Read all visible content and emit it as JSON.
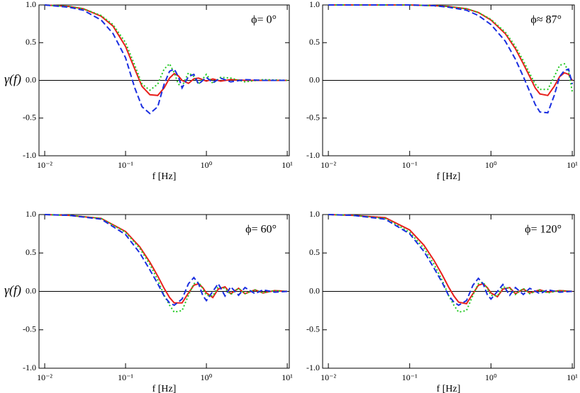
{
  "chart_data": [
    {
      "type": "line",
      "annotation": "ϕ= 0°",
      "ylabel": "γ(f)",
      "xlabel": "f [Hz]",
      "xscale": "log",
      "xlim": [
        0.0085,
        10.6
      ],
      "ylim": [
        -1,
        1
      ],
      "xticks": [
        {
          "value": 0.01,
          "label": "10⁻²"
        },
        {
          "value": 0.1,
          "label": "10⁻¹"
        },
        {
          "value": 1,
          "label": "10⁰"
        },
        {
          "value": 10,
          "label": "10¹"
        }
      ],
      "yticks": [
        {
          "value": -1,
          "label": "-1.0"
        },
        {
          "value": -0.5,
          "label": "-0.5"
        },
        {
          "value": 0,
          "label": "0.0"
        },
        {
          "value": 0.5,
          "label": "0.5"
        },
        {
          "value": 1,
          "label": "1.0"
        }
      ],
      "x": [
        0.01,
        0.02,
        0.03,
        0.05,
        0.07,
        0.1,
        0.13,
        0.16,
        0.2,
        0.25,
        0.3,
        0.35,
        0.4,
        0.45,
        0.5,
        0.6,
        0.7,
        0.8,
        1.0,
        1.2,
        1.5,
        2,
        3,
        5,
        10
      ],
      "series": [
        {
          "color": "#e8201c",
          "dash": "solid",
          "values": [
            1,
            0.98,
            0.95,
            0.85,
            0.72,
            0.45,
            0.15,
            -0.08,
            -0.19,
            -0.2,
            -0.1,
            0.03,
            0.09,
            0.06,
            0.0,
            -0.04,
            0.02,
            0.03,
            -0.01,
            0.02,
            -0.01,
            0.01,
            0,
            0,
            0
          ]
        },
        {
          "color": "#22c922",
          "dash": "dotted",
          "values": [
            1,
            0.98,
            0.95,
            0.86,
            0.74,
            0.5,
            0.2,
            -0.05,
            -0.13,
            -0.05,
            0.15,
            0.22,
            0.1,
            -0.05,
            -0.08,
            0.1,
            0.05,
            -0.05,
            0.08,
            -0.04,
            0.04,
            0.03,
            -0.02,
            0.01,
            0
          ]
        },
        {
          "color": "#1a2ee0",
          "dash": "dashed",
          "values": [
            1,
            0.97,
            0.93,
            0.8,
            0.62,
            0.3,
            -0.1,
            -0.35,
            -0.44,
            -0.35,
            -0.05,
            0.12,
            0.15,
            0.05,
            -0.1,
            0.05,
            0.08,
            -0.05,
            0.04,
            -0.03,
            0.03,
            -0.02,
            0.01,
            0,
            0
          ]
        }
      ]
    },
    {
      "type": "line",
      "annotation": "ϕ≈ 87°",
      "xlabel": "f [Hz]",
      "xscale": "log",
      "xlim": [
        0.0085,
        10.6
      ],
      "ylim": [
        -1,
        1
      ],
      "xticks": [
        {
          "value": 0.01,
          "label": "10⁻²"
        },
        {
          "value": 0.1,
          "label": "10⁻¹"
        },
        {
          "value": 1,
          "label": "10⁰"
        },
        {
          "value": 10,
          "label": "10¹"
        }
      ],
      "yticks": [
        {
          "value": -1,
          "label": "-1.0"
        },
        {
          "value": -0.5,
          "label": "-0.5"
        },
        {
          "value": 0,
          "label": "0.0"
        },
        {
          "value": 0.5,
          "label": "0.5"
        },
        {
          "value": 1,
          "label": "1.0"
        }
      ],
      "x": [
        0.01,
        0.05,
        0.1,
        0.2,
        0.3,
        0.5,
        0.7,
        1,
        1.5,
        2,
        2.5,
        3,
        3.5,
        4,
        5,
        6,
        7,
        8,
        9,
        10
      ],
      "series": [
        {
          "color": "#e8201c",
          "dash": "solid",
          "values": [
            1,
            1,
            1,
            0.99,
            0.98,
            0.95,
            0.9,
            0.8,
            0.62,
            0.42,
            0.22,
            0.05,
            -0.1,
            -0.18,
            -0.2,
            -0.08,
            0.05,
            0.1,
            0.08,
            0.0
          ]
        },
        {
          "color": "#22c922",
          "dash": "dotted",
          "values": [
            1,
            1,
            1,
            0.99,
            0.98,
            0.95,
            0.9,
            0.81,
            0.64,
            0.45,
            0.26,
            0.09,
            -0.05,
            -0.12,
            -0.12,
            0.05,
            0.2,
            0.22,
            0.12,
            -0.15
          ]
        },
        {
          "color": "#1a2ee0",
          "dash": "dashed",
          "values": [
            1,
            1,
            1,
            0.99,
            0.97,
            0.93,
            0.86,
            0.74,
            0.52,
            0.28,
            0.05,
            -0.15,
            -0.32,
            -0.42,
            -0.43,
            -0.2,
            0.05,
            0.13,
            0.15,
            -0.05
          ]
        }
      ]
    },
    {
      "type": "line",
      "annotation": "ϕ= 60°",
      "ylabel": "γ(f)",
      "xlabel": "f [Hz]",
      "xscale": "log",
      "xlim": [
        0.0085,
        10.6
      ],
      "ylim": [
        -1,
        1
      ],
      "xticks": [
        {
          "value": 0.01,
          "label": "10⁻²"
        },
        {
          "value": 0.1,
          "label": "10⁻¹"
        },
        {
          "value": 1,
          "label": "10⁰"
        },
        {
          "value": 10,
          "label": "10¹"
        }
      ],
      "yticks": [
        {
          "value": -1,
          "label": "-1.0"
        },
        {
          "value": -0.5,
          "label": "-0.5"
        },
        {
          "value": 0,
          "label": "0.0"
        },
        {
          "value": 0.5,
          "label": "0.5"
        },
        {
          "value": 1,
          "label": "1.0"
        }
      ],
      "x": [
        0.01,
        0.02,
        0.05,
        0.1,
        0.15,
        0.2,
        0.25,
        0.3,
        0.35,
        0.4,
        0.5,
        0.6,
        0.7,
        0.8,
        0.9,
        1.0,
        1.2,
        1.4,
        1.7,
        2,
        2.5,
        3,
        4,
        5,
        7,
        10
      ],
      "series": [
        {
          "color": "#e8201c",
          "dash": "solid",
          "values": [
            1,
            0.99,
            0.95,
            0.78,
            0.58,
            0.38,
            0.2,
            0.04,
            -0.08,
            -0.15,
            -0.15,
            -0.02,
            0.08,
            0.1,
            0.05,
            -0.02,
            -0.08,
            0.03,
            0.06,
            -0.03,
            0.04,
            -0.03,
            0.02,
            -0.02,
            0.01,
            0
          ]
        },
        {
          "color": "#22c922",
          "dash": "dotted",
          "values": [
            1,
            0.99,
            0.95,
            0.77,
            0.56,
            0.35,
            0.15,
            -0.05,
            -0.18,
            -0.27,
            -0.25,
            -0.05,
            0.1,
            0.12,
            0.04,
            -0.05,
            -0.06,
            0.06,
            0.04,
            -0.04,
            0.04,
            -0.03,
            0.02,
            -0.02,
            0.01,
            0
          ]
        },
        {
          "color": "#1a2ee0",
          "dash": "dashed",
          "values": [
            1,
            0.99,
            0.94,
            0.74,
            0.5,
            0.28,
            0.1,
            -0.06,
            -0.15,
            -0.18,
            -0.1,
            0.1,
            0.18,
            0.1,
            -0.05,
            -0.12,
            0.0,
            0.1,
            -0.06,
            0.06,
            -0.05,
            0.05,
            -0.03,
            0.02,
            -0.01,
            0
          ]
        }
      ]
    },
    {
      "type": "line",
      "annotation": "ϕ= 120°",
      "xlabel": "f [Hz]",
      "xscale": "log",
      "xlim": [
        0.0085,
        10.6
      ],
      "ylim": [
        -1,
        1
      ],
      "xticks": [
        {
          "value": 0.01,
          "label": "10⁻²"
        },
        {
          "value": 0.1,
          "label": "10⁻¹"
        },
        {
          "value": 1,
          "label": "10⁰"
        },
        {
          "value": 10,
          "label": "10¹"
        }
      ],
      "yticks": [
        {
          "value": -1,
          "label": "-1.0"
        },
        {
          "value": -0.5,
          "label": "-0.5"
        },
        {
          "value": 0,
          "label": "0.0"
        },
        {
          "value": 0.5,
          "label": "0.5"
        },
        {
          "value": 1,
          "label": "1.0"
        }
      ],
      "x": [
        0.01,
        0.02,
        0.05,
        0.1,
        0.15,
        0.2,
        0.25,
        0.3,
        0.35,
        0.4,
        0.5,
        0.6,
        0.7,
        0.8,
        0.9,
        1.0,
        1.2,
        1.4,
        1.7,
        2,
        2.5,
        3,
        4,
        5,
        7,
        10
      ],
      "series": [
        {
          "color": "#e8201c",
          "dash": "solid",
          "values": [
            1,
            0.99,
            0.96,
            0.8,
            0.6,
            0.4,
            0.22,
            0.06,
            -0.06,
            -0.14,
            -0.16,
            -0.03,
            0.08,
            0.1,
            0.05,
            -0.02,
            -0.07,
            0.03,
            0.05,
            -0.03,
            0.03,
            -0.02,
            0.02,
            -0.01,
            0.01,
            0
          ]
        },
        {
          "color": "#22c922",
          "dash": "dotted",
          "values": [
            1,
            0.99,
            0.95,
            0.77,
            0.56,
            0.35,
            0.15,
            -0.05,
            -0.18,
            -0.27,
            -0.25,
            -0.05,
            0.1,
            0.12,
            0.04,
            -0.05,
            -0.06,
            0.06,
            0.04,
            -0.04,
            0.04,
            -0.03,
            0.02,
            -0.02,
            0.01,
            0
          ]
        },
        {
          "color": "#1a2ee0",
          "dash": "dashed",
          "values": [
            1,
            0.99,
            0.94,
            0.75,
            0.52,
            0.3,
            0.12,
            -0.05,
            -0.14,
            -0.18,
            -0.12,
            0.08,
            0.17,
            0.1,
            -0.04,
            -0.1,
            0.0,
            0.09,
            -0.05,
            0.05,
            -0.04,
            0.04,
            -0.03,
            0.02,
            -0.01,
            0
          ]
        }
      ]
    }
  ]
}
